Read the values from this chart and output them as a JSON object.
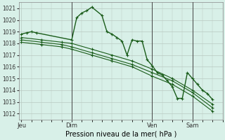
{
  "background_color": "#d8f0e8",
  "plot_bg_color": "#d8f0e8",
  "grid_color": "#b8c8c0",
  "line_color": "#1a5c1a",
  "title": "Pression niveau de la mer( hPa )",
  "ylim": [
    1011.5,
    1021.5
  ],
  "yticks": [
    1012,
    1013,
    1014,
    1015,
    1016,
    1017,
    1018,
    1019,
    1020,
    1021
  ],
  "xtick_labels": [
    "Jeu",
    "Dim",
    "Ven",
    "Sam"
  ],
  "xtick_positions": [
    0,
    10,
    26,
    34
  ],
  "vline_positions": [
    10,
    26,
    34
  ],
  "xlim": [
    -0.5,
    40
  ],
  "series": [
    {
      "x": [
        0,
        1,
        2,
        3,
        10,
        11,
        12,
        13,
        14,
        16,
        17,
        18,
        19,
        20,
        21,
        22,
        23,
        24,
        25,
        26,
        27,
        28,
        29,
        30,
        31,
        32,
        33,
        34,
        35,
        36,
        37,
        38
      ],
      "y": [
        1018.8,
        1018.9,
        1019.0,
        1018.9,
        1018.3,
        1020.2,
        1020.6,
        1020.8,
        1021.1,
        1020.4,
        1019.0,
        1018.8,
        1018.5,
        1018.2,
        1017.0,
        1018.3,
        1018.2,
        1018.2,
        1016.6,
        1016.1,
        1015.5,
        1015.3,
        1014.8,
        1014.3,
        1013.3,
        1013.3,
        1015.5,
        1015.0,
        1014.5,
        1014.0,
        1013.7,
        1013.2
      ]
    },
    {
      "x": [
        0,
        4,
        8,
        10,
        14,
        18,
        22,
        26,
        30,
        34,
        38
      ],
      "y": [
        1018.5,
        1018.3,
        1018.1,
        1018.0,
        1017.5,
        1017.0,
        1016.5,
        1015.8,
        1015.0,
        1014.0,
        1012.8
      ]
    },
    {
      "x": [
        0,
        4,
        8,
        10,
        14,
        18,
        22,
        26,
        30,
        34,
        38
      ],
      "y": [
        1018.3,
        1018.1,
        1017.9,
        1017.7,
        1017.2,
        1016.7,
        1016.2,
        1015.5,
        1014.8,
        1013.8,
        1012.5
      ]
    },
    {
      "x": [
        0,
        4,
        8,
        10,
        14,
        18,
        22,
        26,
        30,
        34,
        38
      ],
      "y": [
        1018.1,
        1017.9,
        1017.7,
        1017.5,
        1017.0,
        1016.5,
        1016.0,
        1015.2,
        1014.5,
        1013.5,
        1012.2
      ]
    }
  ],
  "title_fontsize": 7,
  "ytick_fontsize": 5.5,
  "xtick_fontsize": 6
}
